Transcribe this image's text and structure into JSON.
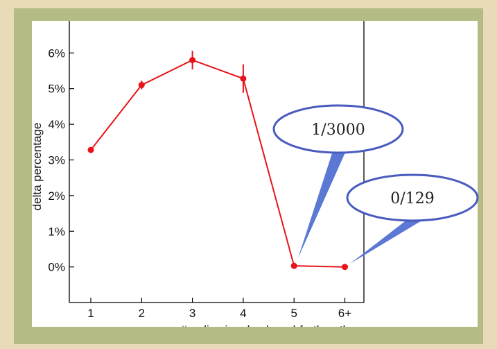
{
  "colors": {
    "parchment": "#e9dbb8",
    "frame": "#b5bb84",
    "series": "#e8131a",
    "callout_border": "#4a5bbf",
    "callout_fill": "#ffffff",
    "callout_pointer": "#5b78d4"
  },
  "chart_data": {
    "type": "line",
    "title": "",
    "xlabel": "#replies in a back-and-forth path",
    "ylabel": "delta percentage",
    "x": [
      "1",
      "2",
      "3",
      "4",
      "5",
      "6+"
    ],
    "y_ticks": [
      "0%",
      "1%",
      "2%",
      "3%",
      "4%",
      "5%",
      "6%"
    ],
    "ylim": [
      -1,
      6.6
    ],
    "grid": false,
    "series": [
      {
        "values": [
          3.28,
          5.1,
          5.8,
          5.28,
          0.03,
          0.0
        ],
        "error": [
          0.0,
          0.12,
          0.26,
          0.4,
          0.0,
          0.0
        ]
      }
    ],
    "annotations": [
      {
        "text": "1/3000",
        "points_to": "5"
      },
      {
        "text": "0/129",
        "points_to": "6+"
      }
    ]
  }
}
